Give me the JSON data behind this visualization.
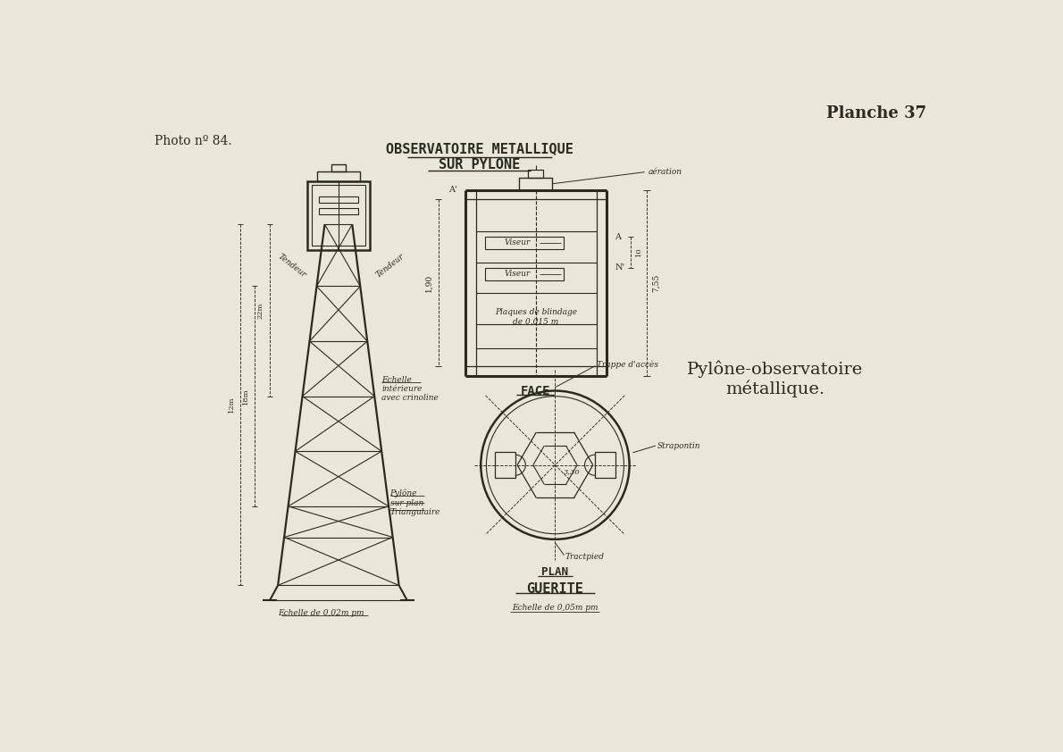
{
  "bg_color": "#eae6da",
  "line_color": "#2c2a1e",
  "title_main": "OBSERVATOIRE METALLIQUE",
  "title_sub": "SUR PYLONE",
  "planche": "Planche 37",
  "photo": "Photo nº 84.",
  "label_face": "FACE",
  "label_plan": "PLAN",
  "label_guerite": "GUERITE",
  "label_pylone_obs": "Pylône-observatoire\nmétallique.",
  "label_aeration": "aération",
  "label_viseur1": "Viseur",
  "label_viseur2": "Viseur",
  "label_plaques": "Plaques de blindage\nde 0,015 m",
  "label_trappe": "Trappe d'accès",
  "label_strapontin": "Strapontin",
  "label_tractpied": "Tractpied",
  "label_tendeur1": "Tendeur",
  "label_tendeur2": "Tendeur",
  "label_echelle_int": "Echelle\nintérieure\navec crinoline",
  "label_pylone_plan": "Pylône\nsur plan\nTriangulaire",
  "label_echelle1": "Echelle de 0,02m pm",
  "label_echelle2": "Echelle de 0,05m pm",
  "dim_190": "1,90",
  "dim_755": "7,55",
  "dim_10": "10",
  "dim_22m": "22m",
  "dim_18m": "18m",
  "dim_12m": "12m",
  "dim_330": "3,30"
}
